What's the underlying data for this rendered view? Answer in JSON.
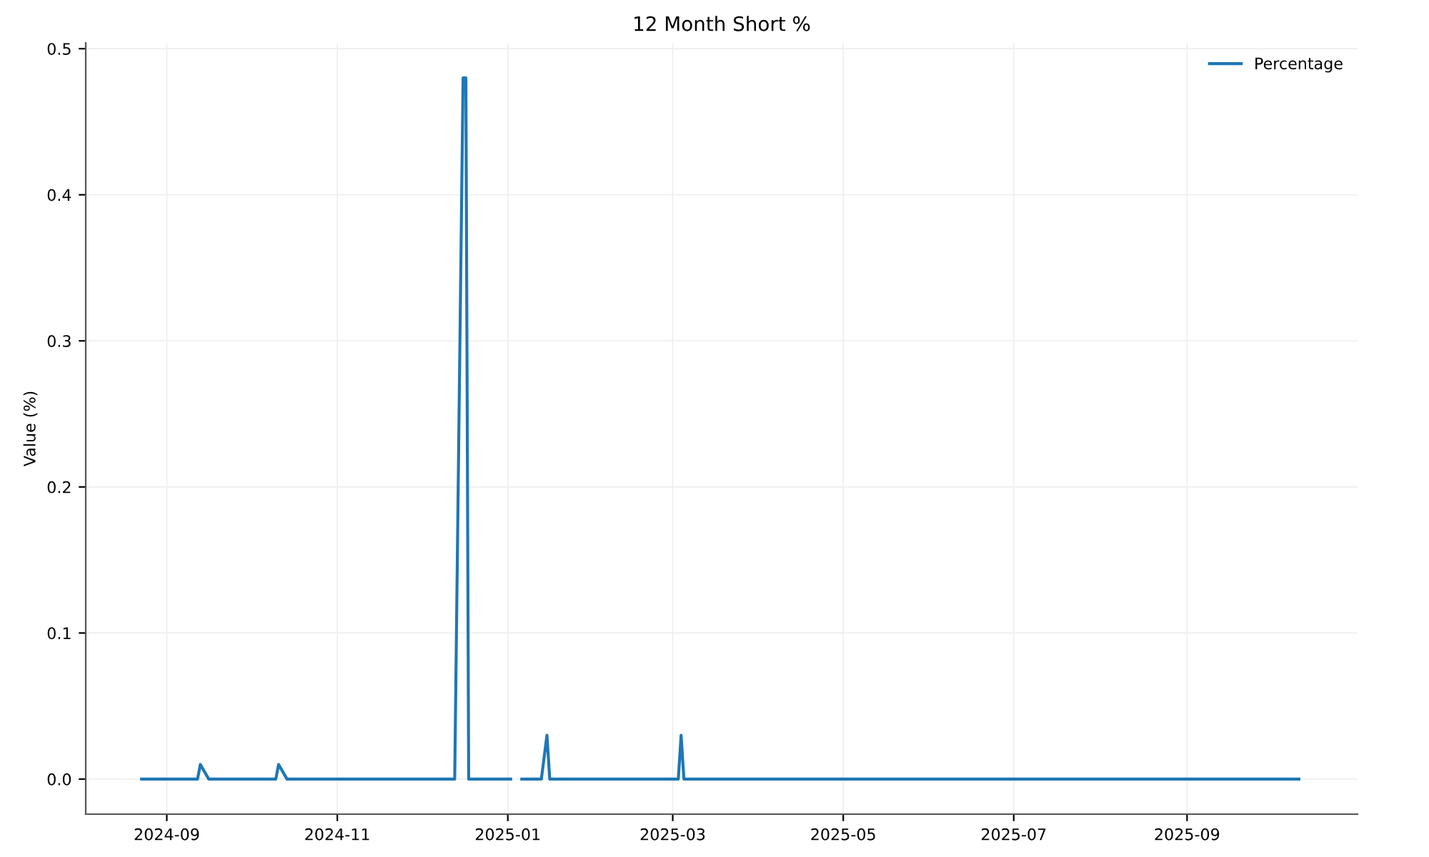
{
  "chart_data": {
    "type": "line",
    "title": "12 Month Short %",
    "ylabel": "Value (%)",
    "x": [
      "2024-08-23",
      "2024-09-12",
      "2024-09-13",
      "2024-09-16",
      "2024-10-10",
      "2024-10-11",
      "2024-10-14",
      "2024-12-13",
      "2024-12-16",
      "2024-12-17",
      "2024-12-18",
      "2025-01-02",
      "2025-01-03",
      "2025-01-06",
      "2025-01-13",
      "2025-01-15",
      "2025-01-16",
      "2025-03-03",
      "2025-03-04",
      "2025-03-05",
      "2025-10-11"
    ],
    "series": [
      {
        "name": "Percentage",
        "color": "#1f77b4",
        "values": [
          0,
          0,
          0.01,
          0,
          0,
          0.01,
          0,
          0,
          0.48,
          0.48,
          0,
          0,
          null,
          0,
          0,
          0.03,
          0,
          0,
          0.03,
          0,
          0
        ]
      }
    ],
    "xlim": [
      "2024-08-03",
      "2025-11-01"
    ],
    "xticks": [
      {
        "value": "2024-09-01",
        "label": "2024-09"
      },
      {
        "value": "2024-11-01",
        "label": "2024-11"
      },
      {
        "value": "2025-01-01",
        "label": "2025-01"
      },
      {
        "value": "2025-03-01",
        "label": "2025-03"
      },
      {
        "value": "2025-05-01",
        "label": "2025-05"
      },
      {
        "value": "2025-07-01",
        "label": "2025-07"
      },
      {
        "value": "2025-09-01",
        "label": "2025-09"
      }
    ],
    "ylim": [
      -0.024,
      0.504
    ],
    "yticks": [
      {
        "value": 0,
        "label": "0.0"
      },
      {
        "value": 0.1,
        "label": "0.1"
      },
      {
        "value": 0.2,
        "label": "0.2"
      },
      {
        "value": 0.3,
        "label": "0.3"
      },
      {
        "value": 0.4,
        "label": "0.4"
      },
      {
        "value": 0.5,
        "label": "0.5"
      }
    ],
    "grid": true,
    "legend": "top right",
    "marker": "none",
    "line_style": "solid"
  }
}
